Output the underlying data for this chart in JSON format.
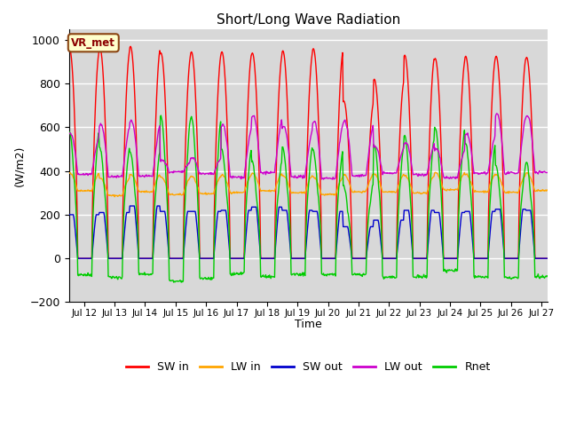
{
  "title": "Short/Long Wave Radiation",
  "xlabel": "Time",
  "ylabel": "(W/m2)",
  "station_label": "VR_met",
  "ylim": [
    -200,
    1050
  ],
  "yticks": [
    -200,
    0,
    200,
    400,
    600,
    800,
    1000
  ],
  "xlim_days": [
    11.5,
    27.2
  ],
  "xtick_days": [
    12,
    13,
    14,
    15,
    16,
    17,
    18,
    19,
    20,
    21,
    22,
    23,
    24,
    25,
    26,
    27
  ],
  "xtick_labels": [
    "Jul 12",
    "Jul 13",
    "Jul 14",
    "Jul 15",
    "Jul 16",
    "Jul 17",
    "Jul 18",
    "Jul 19",
    "Jul 20",
    "Jul 21",
    "Jul 22",
    "Jul 23",
    "Jul 24",
    "Jul 25",
    "Jul 26",
    "Jul 27"
  ],
  "colors": {
    "SW_in": "#ff0000",
    "LW_in": "#ffa500",
    "SW_out": "#0000cc",
    "LW_out": "#cc00cc",
    "Rnet": "#00cc00"
  },
  "legend_labels": [
    "SW in",
    "LW in",
    "SW out",
    "LW out",
    "Rnet"
  ],
  "legend_keys": [
    "SW_in",
    "LW_in",
    "SW_out",
    "LW_out",
    "Rnet"
  ],
  "background_color": "#d8d8d8",
  "grid_color": "#ffffff",
  "n_days": 16,
  "start_day": 11.5,
  "sw_in_peaks": [
    960,
    960,
    970,
    940,
    945,
    945,
    940,
    950,
    960,
    720,
    820,
    930,
    915,
    925,
    925,
    920
  ],
  "sw_out_peaks": [
    200,
    210,
    240,
    215,
    215,
    220,
    235,
    220,
    215,
    145,
    175,
    220,
    210,
    215,
    225,
    220
  ],
  "lw_out_peaks": [
    570,
    610,
    625,
    450,
    460,
    610,
    650,
    600,
    625,
    625,
    510,
    530,
    500,
    570,
    660,
    650
  ],
  "lw_in_base": 305,
  "lw_in_day_add": 80
}
